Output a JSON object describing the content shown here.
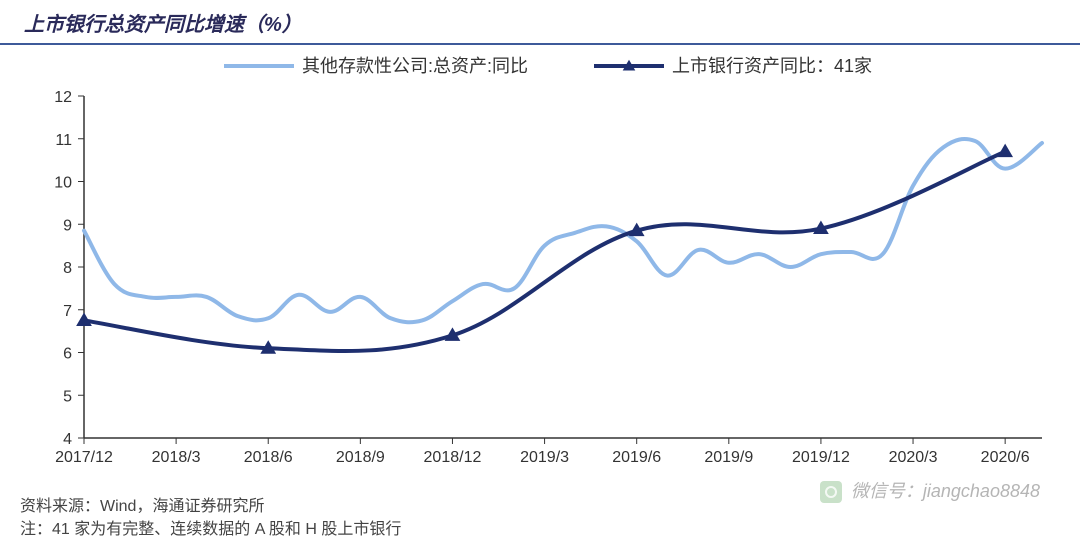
{
  "title": "上市银行总资产同比增速（%）",
  "footer_source": "资料来源：Wind，海通证券研究所",
  "footer_note": "注：41 家为有完整、连续数据的 A 股和 H 股上市银行",
  "watermark": "微信号：jiangchao8848",
  "chart": {
    "type": "line",
    "background_color": "#ffffff",
    "axis_color": "#333333",
    "tick_color": "#333333",
    "ylim": [
      4,
      12
    ],
    "ytick_step": 1,
    "yticks": [
      4,
      5,
      6,
      7,
      8,
      9,
      10,
      11,
      12
    ],
    "xlabels": [
      "2017/12",
      "2018/3",
      "2018/6",
      "2018/9",
      "2018/12",
      "2019/3",
      "2019/6",
      "2019/9",
      "2019/12",
      "2020/3",
      "2020/6"
    ],
    "legend": {
      "position": "top-center",
      "items": [
        {
          "label": "其他存款性公司:总资产:同比",
          "color": "#8fb8e8",
          "line_width": 4,
          "marker": "none"
        },
        {
          "label": "上市银行资产同比：41家",
          "color": "#1e2f6f",
          "line_width": 4,
          "marker": "triangle"
        }
      ]
    },
    "series": [
      {
        "name": "其他存款性公司:总资产:同比",
        "color": "#8fb8e8",
        "line_width": 4,
        "marker": "none",
        "data": [
          {
            "x": 0.0,
            "y": 8.85
          },
          {
            "x": 0.33,
            "y": 7.6
          },
          {
            "x": 0.67,
            "y": 7.3
          },
          {
            "x": 1.0,
            "y": 7.3
          },
          {
            "x": 1.33,
            "y": 7.3
          },
          {
            "x": 1.67,
            "y": 6.85
          },
          {
            "x": 2.0,
            "y": 6.8
          },
          {
            "x": 2.33,
            "y": 7.35
          },
          {
            "x": 2.67,
            "y": 6.95
          },
          {
            "x": 3.0,
            "y": 7.3
          },
          {
            "x": 3.33,
            "y": 6.8
          },
          {
            "x": 3.67,
            "y": 6.75
          },
          {
            "x": 4.0,
            "y": 7.2
          },
          {
            "x": 4.33,
            "y": 7.6
          },
          {
            "x": 4.67,
            "y": 7.5
          },
          {
            "x": 5.0,
            "y": 8.5
          },
          {
            "x": 5.33,
            "y": 8.8
          },
          {
            "x": 5.67,
            "y": 8.95
          },
          {
            "x": 6.0,
            "y": 8.6
          },
          {
            "x": 6.33,
            "y": 7.8
          },
          {
            "x": 6.67,
            "y": 8.4
          },
          {
            "x": 7.0,
            "y": 8.1
          },
          {
            "x": 7.33,
            "y": 8.3
          },
          {
            "x": 7.67,
            "y": 8.0
          },
          {
            "x": 8.0,
            "y": 8.3
          },
          {
            "x": 8.33,
            "y": 8.35
          },
          {
            "x": 8.67,
            "y": 8.3
          },
          {
            "x": 9.0,
            "y": 9.9
          },
          {
            "x": 9.33,
            "y": 10.8
          },
          {
            "x": 9.67,
            "y": 10.95
          },
          {
            "x": 10.0,
            "y": 10.3
          },
          {
            "x": 10.4,
            "y": 10.9
          }
        ]
      },
      {
        "name": "上市银行资产同比：41家",
        "color": "#1e2f6f",
        "line_width": 4,
        "marker": "triangle",
        "marker_size": 10,
        "data": [
          {
            "x": 0.0,
            "y": 6.75
          },
          {
            "x": 2.0,
            "y": 6.1
          },
          {
            "x": 4.0,
            "y": 6.4
          },
          {
            "x": 6.0,
            "y": 8.85
          },
          {
            "x": 8.0,
            "y": 8.9
          },
          {
            "x": 10.0,
            "y": 10.7
          }
        ]
      }
    ]
  }
}
